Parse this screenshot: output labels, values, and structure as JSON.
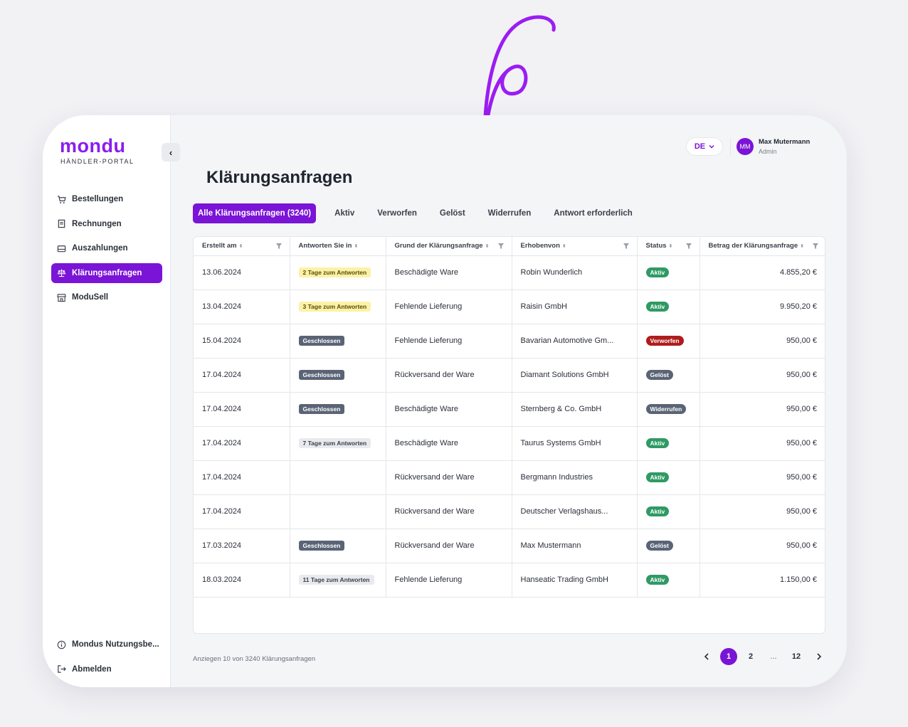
{
  "brand": {
    "name": "mondu",
    "subtitle": "HÄNDLER-PORTAL",
    "accent": "#7a14d6"
  },
  "sidebar": {
    "items": [
      {
        "label": "Bestellungen",
        "icon": "cart-icon",
        "active": false
      },
      {
        "label": "Rechnungen",
        "icon": "receipt-icon",
        "active": false
      },
      {
        "label": "Auszahlungen",
        "icon": "wallet-icon",
        "active": false
      },
      {
        "label": "Klärungsanfragen",
        "icon": "scale-icon",
        "active": true
      },
      {
        "label": "ModuSell",
        "icon": "store-icon",
        "active": false
      }
    ],
    "bottom": [
      {
        "label": "Mondus Nutzungsbe...",
        "icon": "info-icon"
      },
      {
        "label": "Abmelden",
        "icon": "logout-icon"
      }
    ]
  },
  "header": {
    "language": "DE",
    "user": {
      "initials": "MM",
      "name": "Max Mutermann",
      "role": "Admin"
    }
  },
  "page": {
    "title": "Klärungsanfragen"
  },
  "tabs": [
    {
      "label": "Alle Klärungsanfragen (3240)",
      "active": true
    },
    {
      "label": "Aktiv"
    },
    {
      "label": "Verworfen"
    },
    {
      "label": "Gelöst"
    },
    {
      "label": "Widerrufen"
    },
    {
      "label": "Antwort erforderlich"
    }
  ],
  "table": {
    "columns": [
      "Erstellt am",
      "Antworten Sie in",
      "Grund der Klärungsanfrage",
      "Erhobenvon",
      "Status",
      "Betrag der Klärungsanfrage"
    ],
    "rows": [
      {
        "date": "13.06.2024",
        "respond": "2 Tage zum Antworten",
        "respond_style": "b-yellow",
        "reason": "Beschädigte Ware",
        "by": "Robin Wunderlich",
        "status": "Aktiv",
        "status_style": "s-aktiv",
        "amount": "4.855,20 €"
      },
      {
        "date": "13.04.2024",
        "respond": "3 Tage zum Antworten",
        "respond_style": "b-yellow",
        "reason": "Fehlende Lieferung",
        "by": "Raisin GmbH",
        "status": "Aktiv",
        "status_style": "s-aktiv",
        "amount": "9.950,20 €"
      },
      {
        "date": "15.04.2024",
        "respond": "Geschlossen",
        "respond_style": "b-gray-dark",
        "reason": "Fehlende Lieferung",
        "by": "Bavarian Automotive Gm...",
        "status": "Verworfen",
        "status_style": "s-verworfen",
        "amount": "950,00 €"
      },
      {
        "date": "17.04.2024",
        "respond": "Geschlossen",
        "respond_style": "b-gray-dark",
        "reason": "Rückversand der Ware",
        "by": "Diamant Solutions GmbH",
        "status": "Gelöst",
        "status_style": "s-geloest",
        "amount": "950,00 €"
      },
      {
        "date": "17.04.2024",
        "respond": "Geschlossen",
        "respond_style": "b-gray-dark",
        "reason": "Beschädigte Ware",
        "by": "Sternberg & Co. GmbH",
        "status": "Widerrufen",
        "status_style": "s-widerrufen",
        "amount": "950,00 €"
      },
      {
        "date": "17.04.2024",
        "respond": "7 Tage zum Antworten",
        "respond_style": "b-gray-light",
        "reason": "Beschädigte Ware",
        "by": "Taurus Systems GmbH",
        "status": "Aktiv",
        "status_style": "s-aktiv",
        "amount": "950,00 €"
      },
      {
        "date": "17.04.2024",
        "respond": "",
        "respond_style": "",
        "reason": "Rückversand der Ware",
        "by": "Bergmann Industries",
        "status": "Aktiv",
        "status_style": "s-aktiv",
        "amount": "950,00 €"
      },
      {
        "date": "17.04.2024",
        "respond": "",
        "respond_style": "",
        "reason": "Rückversand der Ware",
        "by": "Deutscher Verlagshaus...",
        "status": "Aktiv",
        "status_style": "s-aktiv",
        "amount": "950,00 €"
      },
      {
        "date": "17.03.2024",
        "respond": "Geschlossen",
        "respond_style": "b-gray-dark",
        "reason": "Rückversand der Ware",
        "by": "Max Mustermann",
        "status": "Gelöst",
        "status_style": "s-geloest",
        "amount": "950,00 €"
      },
      {
        "date": "18.03.2024",
        "respond": "11 Tage zum Antworten",
        "respond_style": "b-gray-light",
        "reason": "Fehlende Lieferung",
        "by": "Hanseatic Trading GmbH",
        "status": "Aktiv",
        "status_style": "s-aktiv",
        "amount": "1.150,00 €"
      }
    ]
  },
  "footer": {
    "summary": "Anziegen 10 von 3240 Klärungsanfragen",
    "pages": [
      "1",
      "2",
      "...",
      "12"
    ],
    "current_page": "1"
  }
}
